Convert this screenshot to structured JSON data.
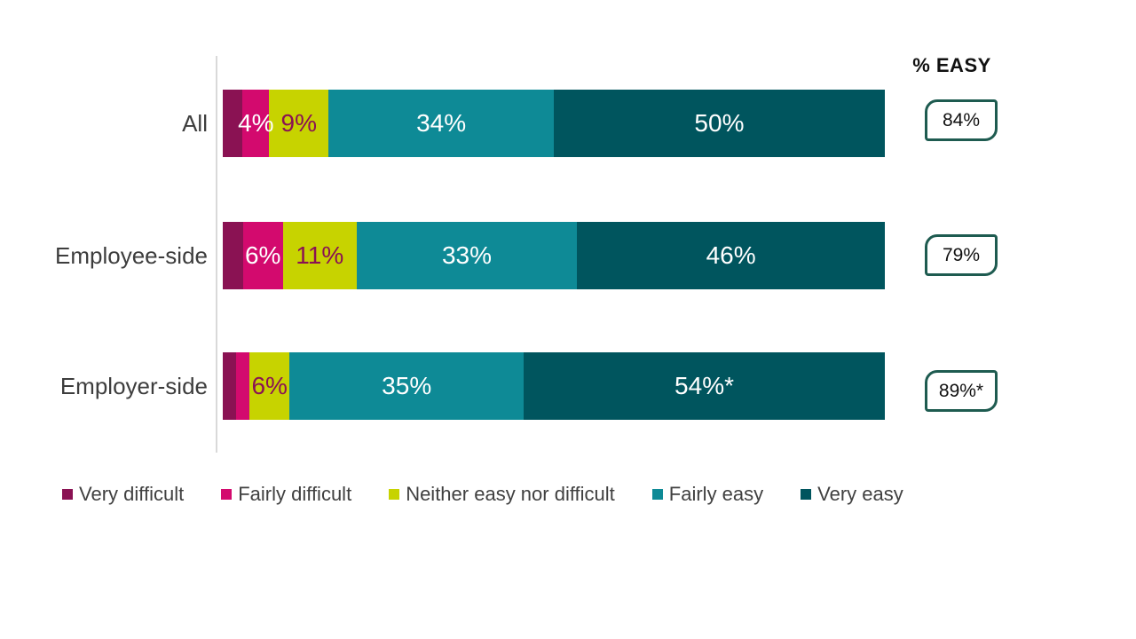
{
  "header": {
    "easy_label": "% EASY"
  },
  "colors": {
    "very_difficult": "#8A1253",
    "fairly_difficult": "#D30A6E",
    "neither": "#C7D300",
    "fairly_easy": "#0E8A96",
    "very_easy": "#00555E",
    "badge_border": "#1E5B50",
    "axis_line": "#D9D9D9",
    "label_white": "#FFFFFF",
    "label_maroon": "#8A1253",
    "text_dark": "#3D3D3D"
  },
  "chart_data": {
    "type": "bar",
    "orientation": "horizontal",
    "stacked": true,
    "grid": false,
    "legend_position": "bottom",
    "xlim": [
      0,
      100
    ],
    "categories": [
      "All",
      "Employee-side",
      "Employer-side"
    ],
    "series": [
      {
        "name": "Very difficult",
        "color": "#8A1253",
        "values": [
          3,
          3,
          2
        ],
        "labels": [
          "",
          "",
          ""
        ],
        "label_color": "#FFFFFF"
      },
      {
        "name": "Fairly difficult",
        "color": "#D30A6E",
        "values": [
          4,
          6,
          2
        ],
        "labels": [
          "4%",
          "6%",
          ""
        ],
        "label_color": "#FFFFFF"
      },
      {
        "name": "Neither easy nor difficult",
        "color": "#C7D300",
        "values": [
          9,
          11,
          6
        ],
        "labels": [
          "9%",
          "11%",
          "6%"
        ],
        "label_color": "#8A1253"
      },
      {
        "name": "Fairly easy",
        "color": "#0E8A96",
        "values": [
          34,
          33,
          35
        ],
        "labels": [
          "34%",
          "33%",
          "35%"
        ],
        "label_color": "#FFFFFF"
      },
      {
        "name": "Very easy",
        "color": "#00555E",
        "values": [
          50,
          46,
          54
        ],
        "labels": [
          "50%",
          "46%",
          "54%*"
        ],
        "label_color": "#FFFFFF"
      }
    ],
    "pct_easy": [
      "84%",
      "79%",
      "89%*"
    ],
    "legend": [
      "Very difficult",
      "Fairly difficult",
      "Neither easy nor difficult",
      "Fairly easy",
      "Very easy"
    ]
  }
}
